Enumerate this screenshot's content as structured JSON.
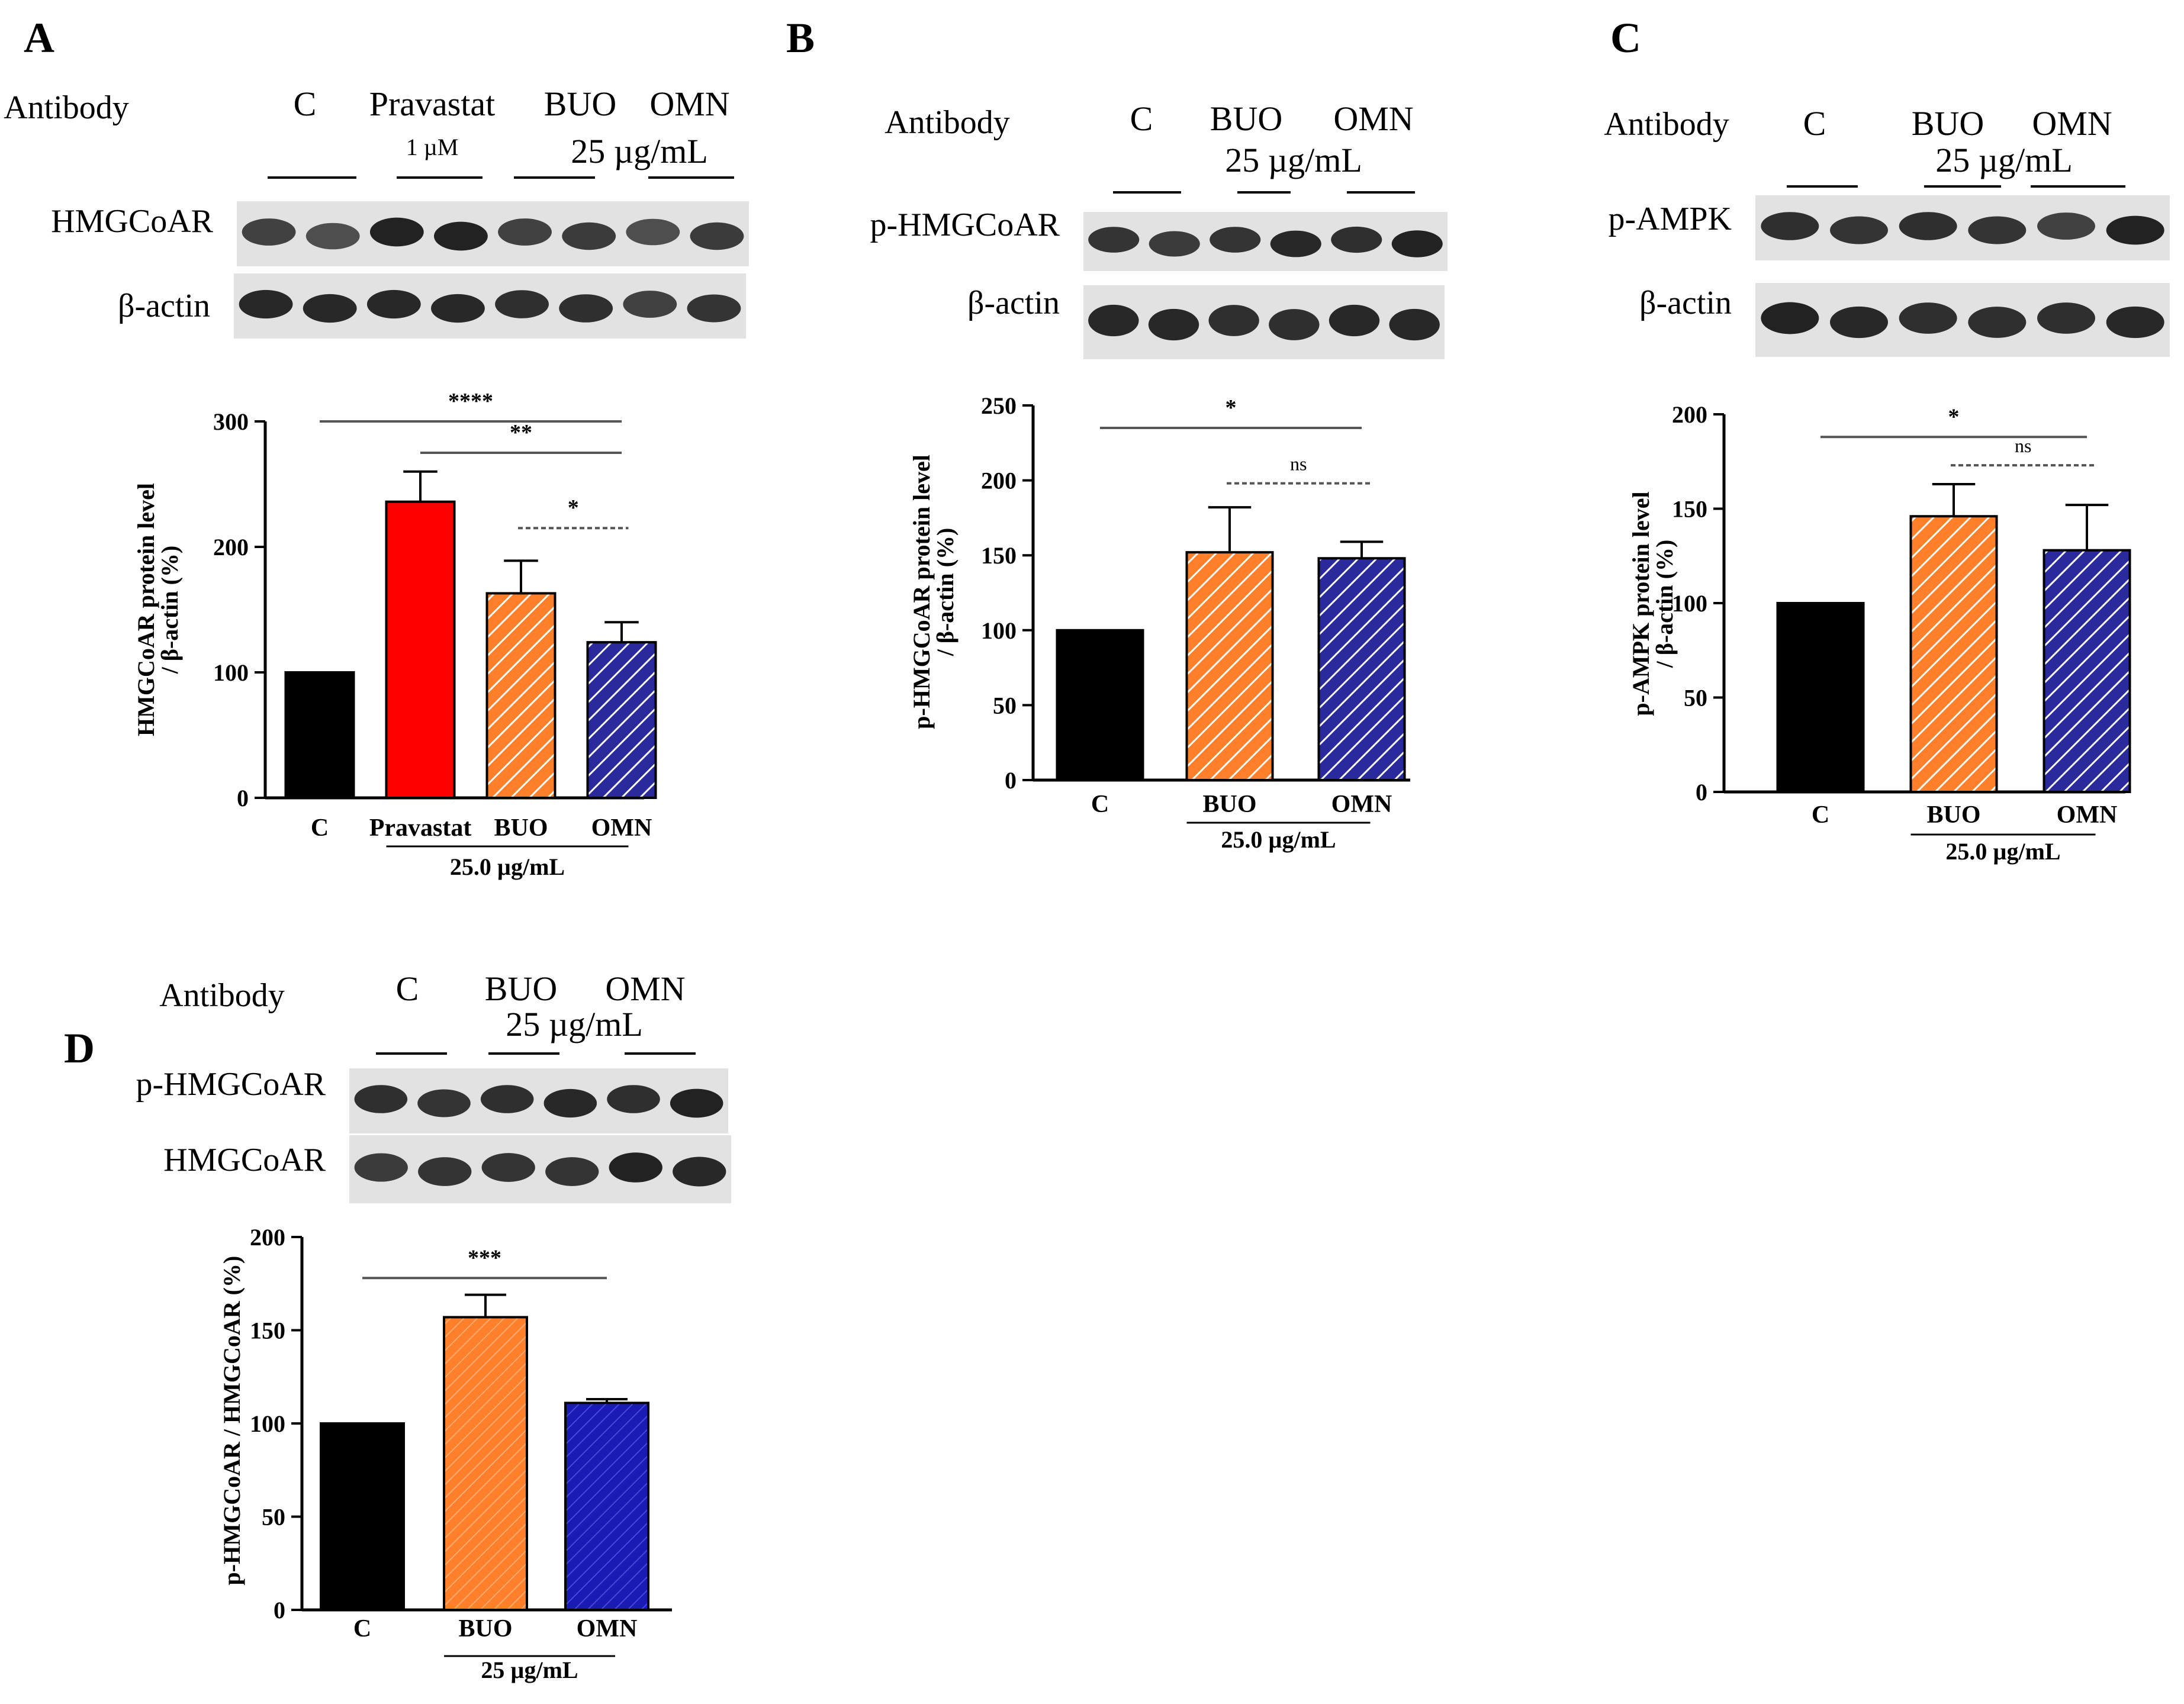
{
  "panels": [
    {
      "letter": "A",
      "blot": {
        "antibody_label": "Antibody",
        "groups": [
          {
            "label": "C",
            "sub": ""
          },
          {
            "label": "Pravastat",
            "sub": "1 µM"
          },
          {
            "label": "BUO",
            "sub": ""
          },
          {
            "label": "OMN",
            "sub": ""
          }
        ],
        "conc_label": "25 µg/mL",
        "rows": [
          "HMGCoAR",
          "β-actin"
        ]
      },
      "chart_data": {
        "type": "bar",
        "categories": [
          "C",
          "Pravastat",
          "BUO",
          "OMN"
        ],
        "values": [
          100,
          236,
          163,
          124
        ],
        "errors": [
          0,
          24,
          26,
          16
        ],
        "fills": [
          "#000000",
          "#ff0000",
          "#ff7f2a",
          "#2a2a9c"
        ],
        "hatched": [
          false,
          false,
          true,
          true
        ],
        "ylabel_lines": [
          "HMGCoAR protein level",
          "/ β-actin (%)"
        ],
        "ylim": [
          0,
          300
        ],
        "yticks": [
          0,
          100,
          200,
          300
        ],
        "group_label": "25.0 µg/mL",
        "group_span": [
          1,
          3
        ],
        "significance": [
          {
            "from": 0,
            "to": 3,
            "label": "****",
            "level": 300,
            "dashed": false
          },
          {
            "from": 1,
            "to": 3,
            "label": "**",
            "level": 275,
            "dashed": false
          },
          {
            "from": 2,
            "to": 3,
            "label": "*",
            "level": 215,
            "dashed": true
          }
        ]
      }
    },
    {
      "letter": "B",
      "blot": {
        "antibody_label": "Antibody",
        "groups": [
          {
            "label": "C",
            "sub": ""
          },
          {
            "label": "BUO",
            "sub": ""
          },
          {
            "label": "OMN",
            "sub": ""
          }
        ],
        "conc_label": "25 µg/mL",
        "rows": [
          "p-HMGCoAR",
          "β-actin"
        ]
      },
      "chart_data": {
        "type": "bar",
        "categories": [
          "C",
          "BUO",
          "OMN"
        ],
        "values": [
          100,
          152,
          148
        ],
        "errors": [
          0,
          30,
          11
        ],
        "fills": [
          "#000000",
          "#ff7f2a",
          "#2a2a9c"
        ],
        "hatched": [
          false,
          true,
          true
        ],
        "ylabel_lines": [
          "p-HMGCoAR protein level",
          "/ β-actin (%)"
        ],
        "ylim": [
          0,
          250
        ],
        "yticks": [
          0,
          50,
          100,
          150,
          200,
          250
        ],
        "group_label": "25.0 µg/mL",
        "group_span": [
          1,
          2
        ],
        "significance": [
          {
            "from": 0,
            "to": 2,
            "label": "*",
            "level": 235,
            "dashed": false
          },
          {
            "from": 1,
            "to": 2,
            "label": "ns",
            "level": 198,
            "dashed": true
          }
        ]
      }
    },
    {
      "letter": "C",
      "blot": {
        "antibody_label": "Antibody",
        "groups": [
          {
            "label": "C",
            "sub": ""
          },
          {
            "label": "BUO",
            "sub": ""
          },
          {
            "label": "OMN",
            "sub": ""
          }
        ],
        "conc_label": "25 µg/mL",
        "rows": [
          "p-AMPK",
          "β-actin"
        ]
      },
      "chart_data": {
        "type": "bar",
        "categories": [
          "C",
          "BUO",
          "OMN"
        ],
        "values": [
          100,
          146,
          128
        ],
        "errors": [
          0,
          17,
          24
        ],
        "fills": [
          "#000000",
          "#ff7f2a",
          "#2a2a9c"
        ],
        "hatched": [
          false,
          true,
          true
        ],
        "ylabel_lines": [
          "p-AMPK protein level",
          "/ β-actin (%)"
        ],
        "ylim": [
          0,
          200
        ],
        "yticks": [
          0,
          50,
          100,
          150,
          200
        ],
        "group_label": "25.0 µg/mL",
        "group_span": [
          1,
          2
        ],
        "significance": [
          {
            "from": 0,
            "to": 2,
            "label": "*",
            "level": 188,
            "dashed": false
          },
          {
            "from": 1,
            "to": 2,
            "label": "ns",
            "level": 173,
            "dashed": true
          }
        ]
      }
    },
    {
      "letter": "D",
      "blot": {
        "antibody_label": "Antibody",
        "groups": [
          {
            "label": "C",
            "sub": ""
          },
          {
            "label": "BUO",
            "sub": ""
          },
          {
            "label": "OMN",
            "sub": ""
          }
        ],
        "conc_label": "25 µg/mL",
        "rows": [
          "p-HMGCoAR",
          "HMGCoAR"
        ]
      },
      "chart_data": {
        "type": "bar",
        "categories": [
          "C",
          "BUO",
          "OMN"
        ],
        "values": [
          100,
          157,
          111
        ],
        "errors": [
          0,
          12,
          2
        ],
        "fills": [
          "#000000",
          "#ff7f2a",
          "#1a1ab5"
        ],
        "hatched": [
          false,
          true,
          true
        ],
        "ylabel_lines": [
          "p-HMGCoAR / HMGCoAR (%)"
        ],
        "ylim": [
          0,
          200
        ],
        "yticks": [
          0,
          50,
          100,
          150,
          200
        ],
        "group_label": "25 µg/mL",
        "group_span": [
          1,
          2
        ],
        "significance": [
          {
            "from": 0,
            "to": 2,
            "label": "***",
            "level": 178,
            "dashed": false
          }
        ]
      }
    }
  ]
}
